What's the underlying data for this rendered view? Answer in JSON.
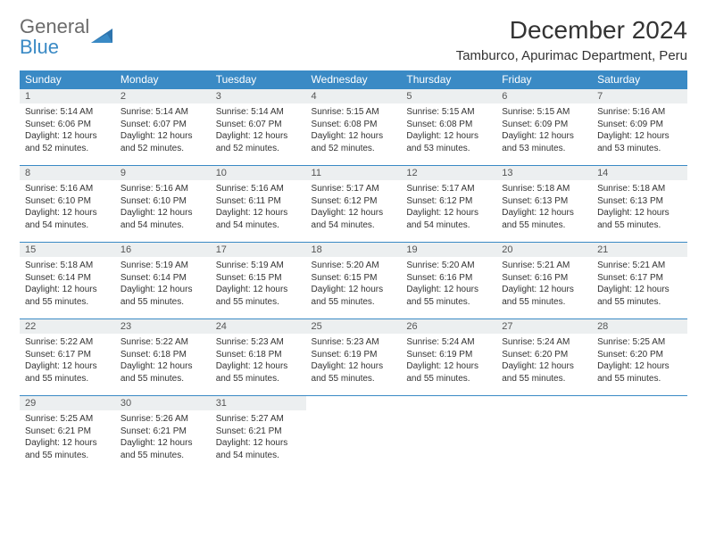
{
  "brand": {
    "line1": "General",
    "line2": "Blue"
  },
  "title": "December 2024",
  "location": "Tamburco, Apurimac Department, Peru",
  "colors": {
    "accent": "#3a8ac5",
    "daynum_bg": "#eceff0",
    "text": "#333333"
  },
  "weekday_labels": [
    "Sunday",
    "Monday",
    "Tuesday",
    "Wednesday",
    "Thursday",
    "Friday",
    "Saturday"
  ],
  "days": [
    {
      "n": 1,
      "sr": "5:14 AM",
      "ss": "6:06 PM",
      "dl": "12 hours and 52 minutes."
    },
    {
      "n": 2,
      "sr": "5:14 AM",
      "ss": "6:07 PM",
      "dl": "12 hours and 52 minutes."
    },
    {
      "n": 3,
      "sr": "5:14 AM",
      "ss": "6:07 PM",
      "dl": "12 hours and 52 minutes."
    },
    {
      "n": 4,
      "sr": "5:15 AM",
      "ss": "6:08 PM",
      "dl": "12 hours and 52 minutes."
    },
    {
      "n": 5,
      "sr": "5:15 AM",
      "ss": "6:08 PM",
      "dl": "12 hours and 53 minutes."
    },
    {
      "n": 6,
      "sr": "5:15 AM",
      "ss": "6:09 PM",
      "dl": "12 hours and 53 minutes."
    },
    {
      "n": 7,
      "sr": "5:16 AM",
      "ss": "6:09 PM",
      "dl": "12 hours and 53 minutes."
    },
    {
      "n": 8,
      "sr": "5:16 AM",
      "ss": "6:10 PM",
      "dl": "12 hours and 54 minutes."
    },
    {
      "n": 9,
      "sr": "5:16 AM",
      "ss": "6:10 PM",
      "dl": "12 hours and 54 minutes."
    },
    {
      "n": 10,
      "sr": "5:16 AM",
      "ss": "6:11 PM",
      "dl": "12 hours and 54 minutes."
    },
    {
      "n": 11,
      "sr": "5:17 AM",
      "ss": "6:12 PM",
      "dl": "12 hours and 54 minutes."
    },
    {
      "n": 12,
      "sr": "5:17 AM",
      "ss": "6:12 PM",
      "dl": "12 hours and 54 minutes."
    },
    {
      "n": 13,
      "sr": "5:18 AM",
      "ss": "6:13 PM",
      "dl": "12 hours and 55 minutes."
    },
    {
      "n": 14,
      "sr": "5:18 AM",
      "ss": "6:13 PM",
      "dl": "12 hours and 55 minutes."
    },
    {
      "n": 15,
      "sr": "5:18 AM",
      "ss": "6:14 PM",
      "dl": "12 hours and 55 minutes."
    },
    {
      "n": 16,
      "sr": "5:19 AM",
      "ss": "6:14 PM",
      "dl": "12 hours and 55 minutes."
    },
    {
      "n": 17,
      "sr": "5:19 AM",
      "ss": "6:15 PM",
      "dl": "12 hours and 55 minutes."
    },
    {
      "n": 18,
      "sr": "5:20 AM",
      "ss": "6:15 PM",
      "dl": "12 hours and 55 minutes."
    },
    {
      "n": 19,
      "sr": "5:20 AM",
      "ss": "6:16 PM",
      "dl": "12 hours and 55 minutes."
    },
    {
      "n": 20,
      "sr": "5:21 AM",
      "ss": "6:16 PM",
      "dl": "12 hours and 55 minutes."
    },
    {
      "n": 21,
      "sr": "5:21 AM",
      "ss": "6:17 PM",
      "dl": "12 hours and 55 minutes."
    },
    {
      "n": 22,
      "sr": "5:22 AM",
      "ss": "6:17 PM",
      "dl": "12 hours and 55 minutes."
    },
    {
      "n": 23,
      "sr": "5:22 AM",
      "ss": "6:18 PM",
      "dl": "12 hours and 55 minutes."
    },
    {
      "n": 24,
      "sr": "5:23 AM",
      "ss": "6:18 PM",
      "dl": "12 hours and 55 minutes."
    },
    {
      "n": 25,
      "sr": "5:23 AM",
      "ss": "6:19 PM",
      "dl": "12 hours and 55 minutes."
    },
    {
      "n": 26,
      "sr": "5:24 AM",
      "ss": "6:19 PM",
      "dl": "12 hours and 55 minutes."
    },
    {
      "n": 27,
      "sr": "5:24 AM",
      "ss": "6:20 PM",
      "dl": "12 hours and 55 minutes."
    },
    {
      "n": 28,
      "sr": "5:25 AM",
      "ss": "6:20 PM",
      "dl": "12 hours and 55 minutes."
    },
    {
      "n": 29,
      "sr": "5:25 AM",
      "ss": "6:21 PM",
      "dl": "12 hours and 55 minutes."
    },
    {
      "n": 30,
      "sr": "5:26 AM",
      "ss": "6:21 PM",
      "dl": "12 hours and 55 minutes."
    },
    {
      "n": 31,
      "sr": "5:27 AM",
      "ss": "6:21 PM",
      "dl": "12 hours and 54 minutes."
    }
  ],
  "labels": {
    "sunrise": "Sunrise:",
    "sunset": "Sunset:",
    "daylight": "Daylight:"
  }
}
